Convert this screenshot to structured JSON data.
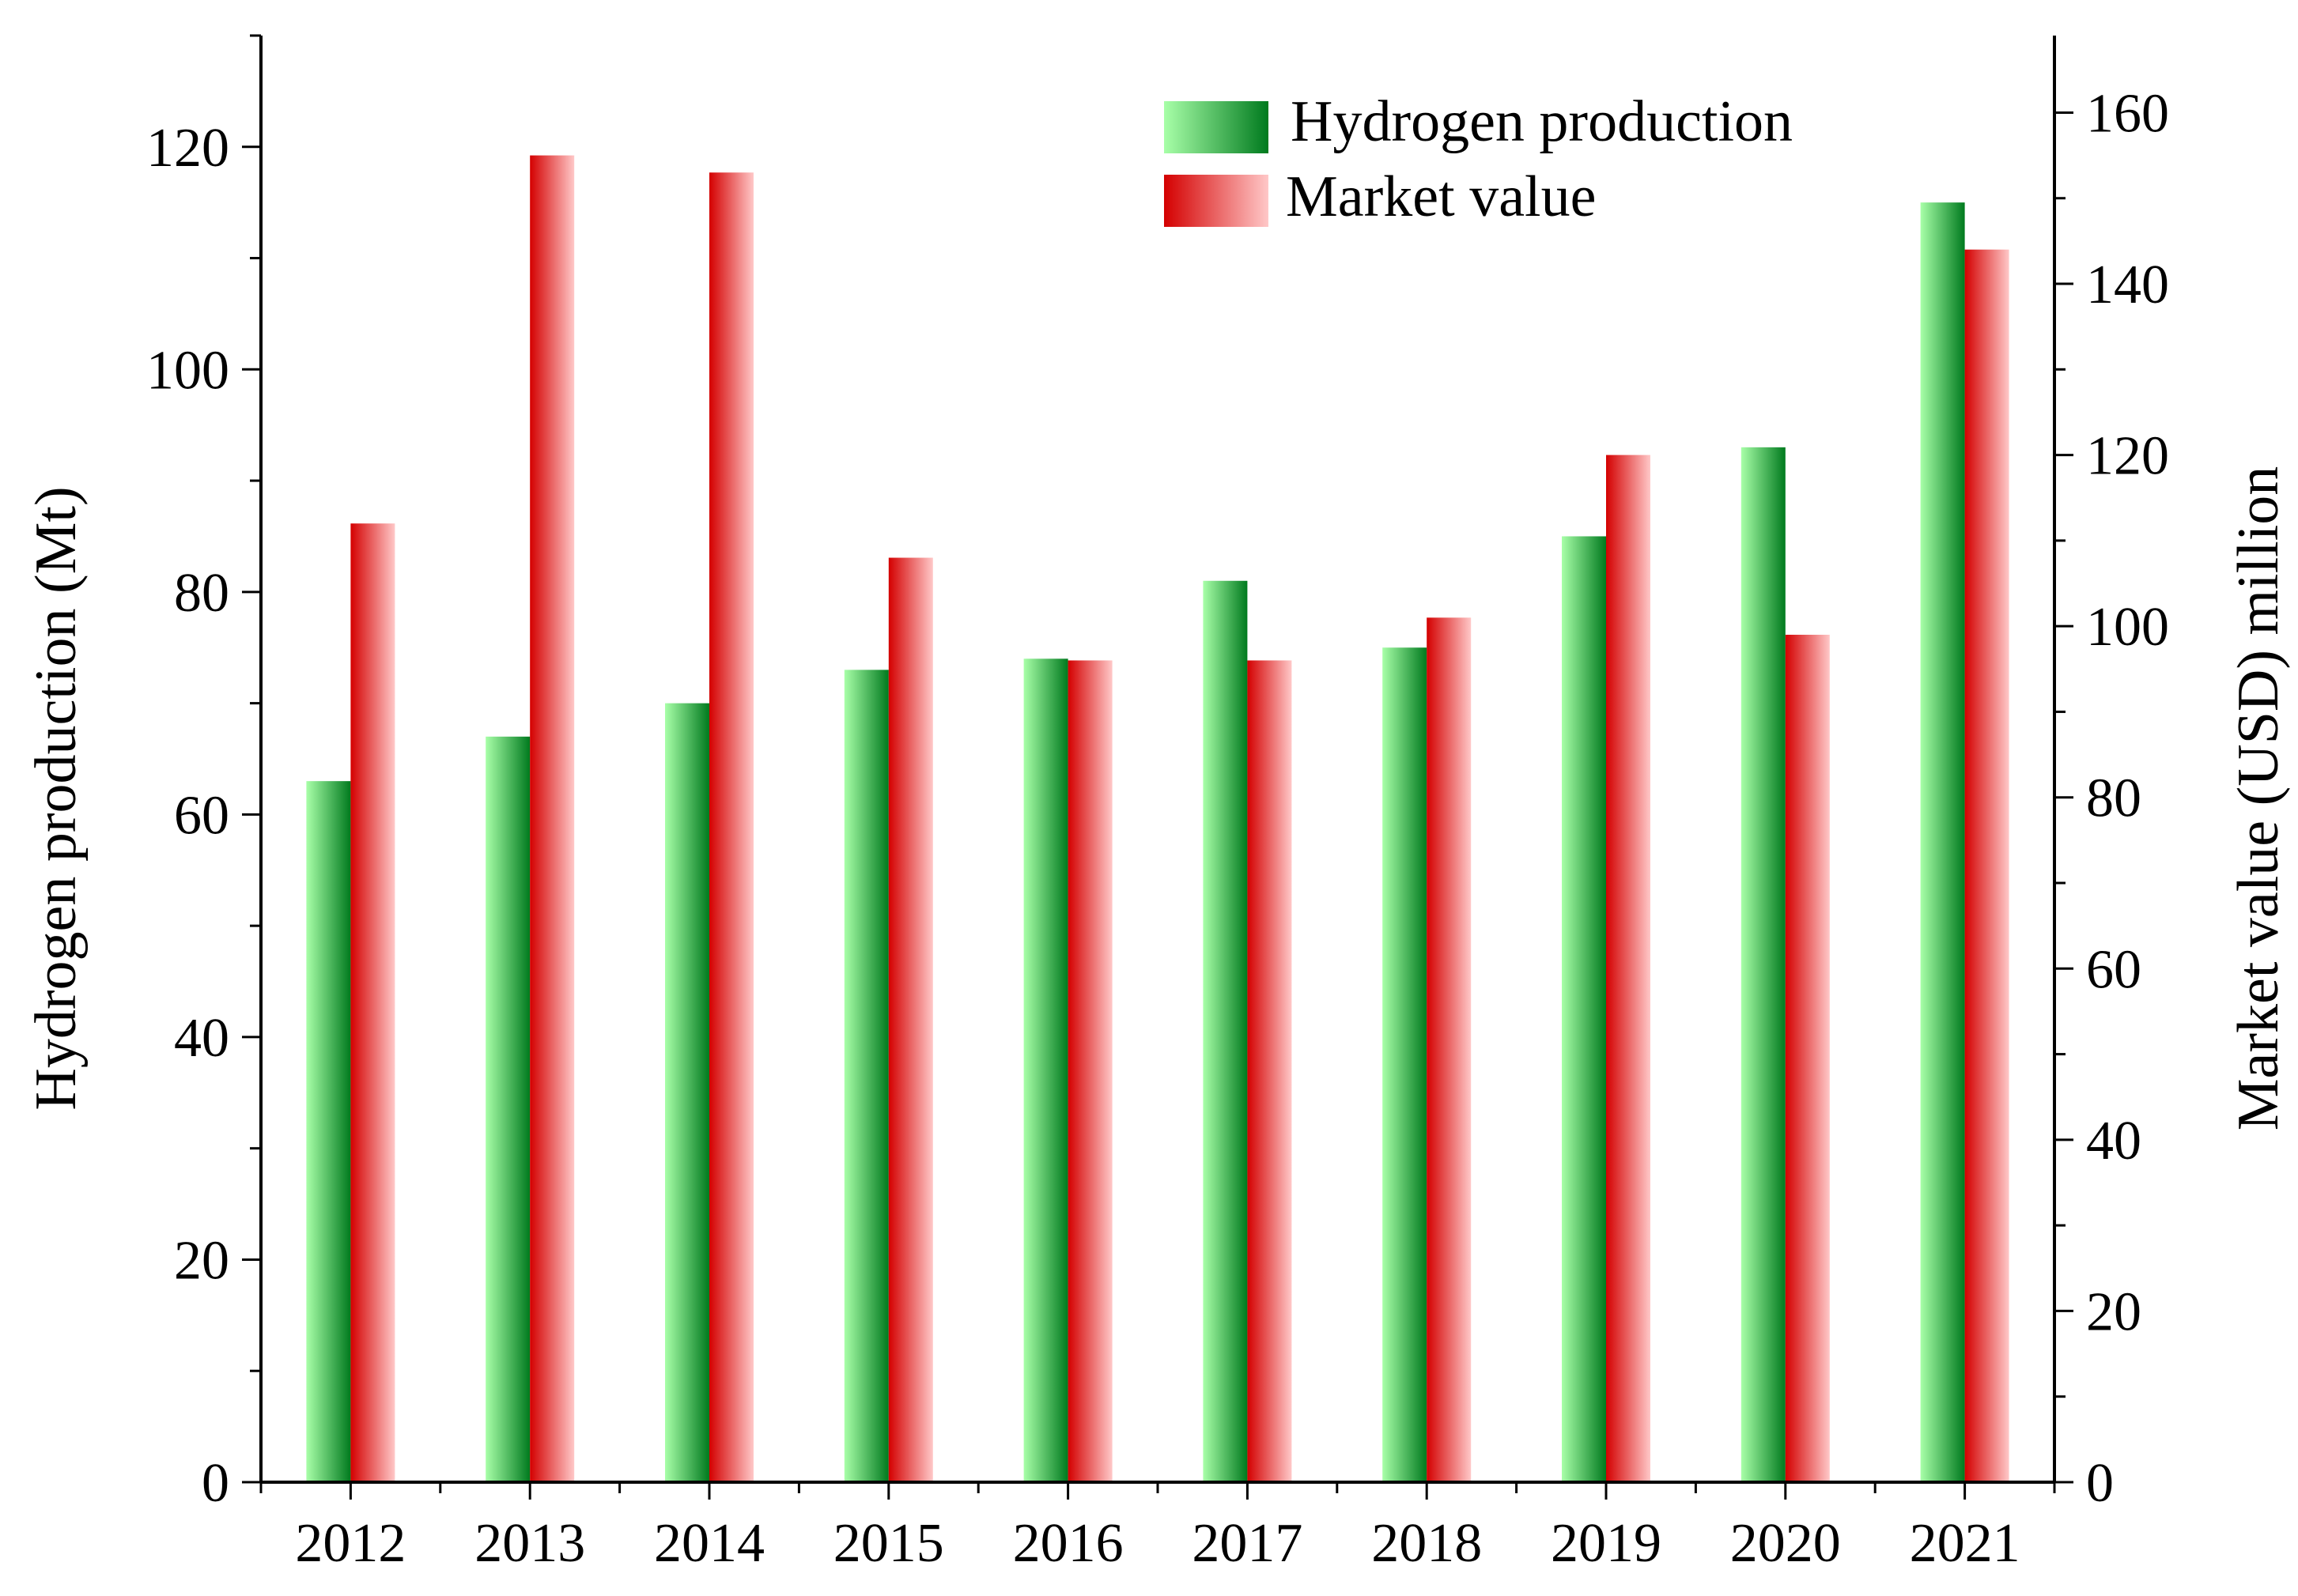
{
  "chart_data": {
    "type": "bar",
    "categories": [
      "2012",
      "2013",
      "2014",
      "2015",
      "2016",
      "2017",
      "2018",
      "2019",
      "2020",
      "2021"
    ],
    "series": [
      {
        "name": "Hydrogen production",
        "axis": "left",
        "values": [
          63,
          67,
          70,
          73,
          74,
          81,
          75,
          85,
          93,
          115
        ],
        "color_dark": "#007A1E",
        "color_light": "#A8FFA8"
      },
      {
        "name": "Market value",
        "axis": "right",
        "values": [
          112,
          155,
          153,
          108,
          96,
          96,
          101,
          120,
          99,
          144
        ],
        "color_dark": "#D40000",
        "color_light": "#FFC8C8"
      }
    ],
    "left_axis": {
      "label": "Hydrogen production (Mt)",
      "ylim": [
        0,
        130
      ],
      "ticks": [
        0,
        20,
        40,
        60,
        80,
        100,
        120
      ]
    },
    "right_axis": {
      "label": "Market value (USD) million",
      "ylim": [
        0,
        169
      ],
      "ticks": [
        0,
        20,
        40,
        60,
        80,
        100,
        120,
        140,
        160
      ]
    },
    "legend": {
      "position": "top-right"
    },
    "grid": false
  }
}
